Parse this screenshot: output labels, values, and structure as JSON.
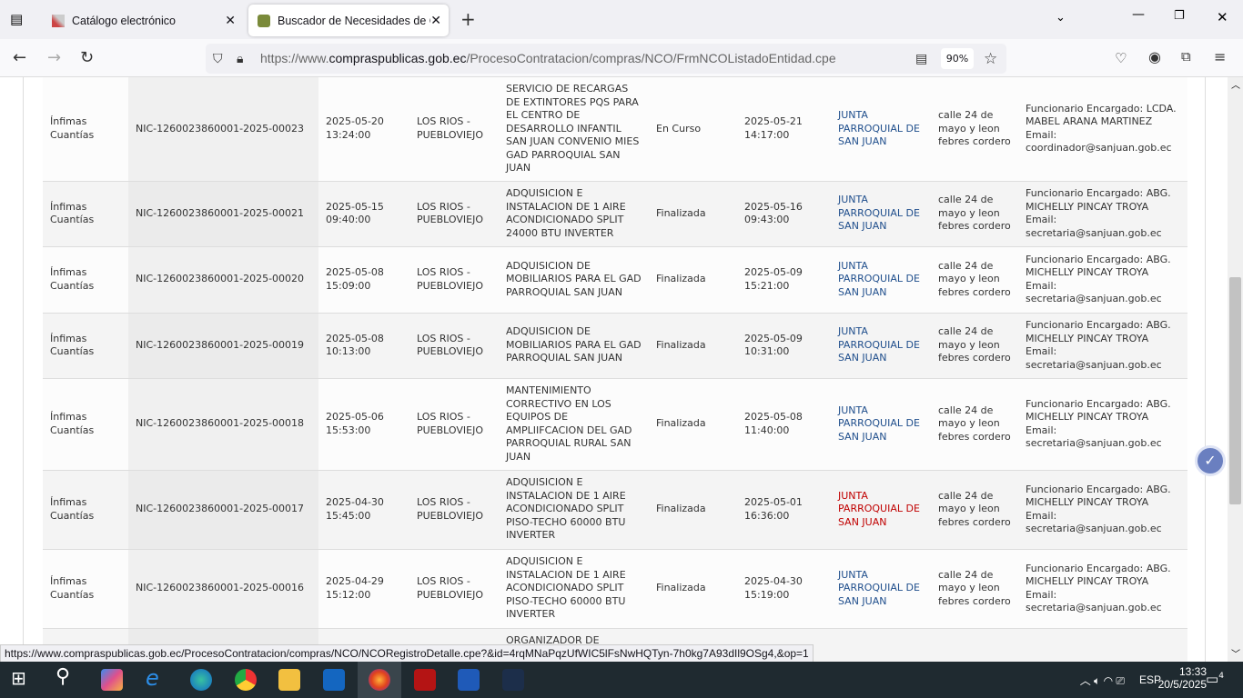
{
  "browser": {
    "tabs": [
      {
        "label": "Catálogo electrónico",
        "active": false
      },
      {
        "label": "Buscador de Necesidades de Co",
        "active": true
      }
    ],
    "url_prefix": "https://www.",
    "url_domain": "compraspublicas.gob.ec",
    "url_path": "/ProcesoContratacion/compras/NCO/FrmNCOListadoEntidad.cpe",
    "zoom": "90%",
    "status_url": "https://www.compraspublicas.gob.ec/ProcesoContratacion/compras/NCO/NCORegistroDetalle.cpe?&id=4rqMNaPqzUfWIC5lFsNwHQTyn-7h0kg7A93dIl9OSg4,&op=1"
  },
  "rows": [
    {
      "tipo": "Ínfimas Cuantías",
      "codigo": "NIC-1260023860001-2025-00023",
      "fecha": "2025-05-20 13:24:00",
      "ubicacion": "LOS RIOS - PUEBLOVIEJO",
      "descripcion": "SERVICIO DE RECARGAS DE EXTINTORES PQS PARA EL CENTRO DE DESARROLLO INFANTIL SAN JUAN CONVENIO MIES GAD PARROQUIAL SAN JUAN",
      "estado": "En Curso",
      "fecha_fin": "2025-05-21 14:17:00",
      "entidad": "JUNTA PARROQUIAL DE SAN JUAN",
      "direccion": "calle 24 de mayo y leon febres cordero",
      "contacto": "Funcionario Encargado: LCDA. MABEL ARANA MARTINEZ Email: coordinador@sanjuan.gob.ec"
    },
    {
      "tipo": "Ínfimas Cuantías",
      "codigo": "NIC-1260023860001-2025-00021",
      "fecha": "2025-05-15 09:40:00",
      "ubicacion": "LOS RIOS - PUEBLOVIEJO",
      "descripcion": "ADQUISICION E INSTALACION DE 1 AIRE ACONDICIONADO SPLIT 24000 BTU INVERTER",
      "estado": "Finalizada",
      "fecha_fin": "2025-05-16 09:43:00",
      "entidad": "JUNTA PARROQUIAL DE SAN JUAN",
      "direccion": "calle 24 de mayo y leon febres cordero",
      "contacto": "Funcionario Encargado: ABG. MICHELLY PINCAY TROYA Email: secretaria@sanjuan.gob.ec"
    },
    {
      "tipo": "Ínfimas Cuantías",
      "codigo": "NIC-1260023860001-2025-00020",
      "fecha": "2025-05-08 15:09:00",
      "ubicacion": "LOS RIOS - PUEBLOVIEJO",
      "descripcion": "ADQUISICION DE MOBILIARIOS PARA EL GAD PARROQUIAL SAN JUAN",
      "estado": "Finalizada",
      "fecha_fin": "2025-05-09 15:21:00",
      "entidad": "JUNTA PARROQUIAL DE SAN JUAN",
      "direccion": "calle 24 de mayo y leon febres cordero",
      "contacto": "Funcionario Encargado: ABG. MICHELLY PINCAY TROYA Email: secretaria@sanjuan.gob.ec"
    },
    {
      "tipo": "Ínfimas Cuantías",
      "codigo": "NIC-1260023860001-2025-00019",
      "fecha": "2025-05-08 10:13:00",
      "ubicacion": "LOS RIOS - PUEBLOVIEJO",
      "descripcion": "ADQUISICION DE MOBILIARIOS PARA EL GAD PARROQUIAL SAN JUAN",
      "estado": "Finalizada",
      "fecha_fin": "2025-05-09 10:31:00",
      "entidad": "JUNTA PARROQUIAL DE SAN JUAN",
      "direccion": "calle 24 de mayo y leon febres cordero",
      "contacto": "Funcionario Encargado: ABG. MICHELLY PINCAY TROYA Email: secretaria@sanjuan.gob.ec"
    },
    {
      "tipo": "Ínfimas Cuantías",
      "codigo": "NIC-1260023860001-2025-00018",
      "fecha": "2025-05-06 15:53:00",
      "ubicacion": "LOS RIOS - PUEBLOVIEJO",
      "descripcion": "MANTENIMIENTO CORRECTIVO EN LOS EQUIPOS DE AMPLIIFCACION DEL GAD PARROQUIAL RURAL SAN JUAN",
      "estado": "Finalizada",
      "fecha_fin": "2025-05-08 11:40:00",
      "entidad": "JUNTA PARROQUIAL DE SAN JUAN",
      "direccion": "calle 24 de mayo y leon febres cordero",
      "contacto": "Funcionario Encargado: ABG. MICHELLY PINCAY TROYA Email: secretaria@sanjuan.gob.ec"
    },
    {
      "tipo": "Ínfimas Cuantías",
      "codigo": "NIC-1260023860001-2025-00017",
      "fecha": "2025-04-30 15:45:00",
      "ubicacion": "LOS RIOS - PUEBLOVIEJO",
      "descripcion": "ADQUISICION E INSTALACION DE 1 AIRE ACONDICIONADO SPLIT PISO-TECHO 60000 BTU INVERTER",
      "estado": "Finalizada",
      "fecha_fin": "2025-05-01 16:36:00",
      "entidad": "JUNTA PARROQUIAL DE SAN JUAN",
      "entity_hover": true,
      "direccion": "calle 24 de mayo y leon febres cordero",
      "contacto": "Funcionario Encargado: ABG. MICHELLY PINCAY TROYA Email: secretaria@sanjuan.gob.ec"
    },
    {
      "tipo": "Ínfimas Cuantías",
      "codigo": "NIC-1260023860001-2025-00016",
      "fecha": "2025-04-29 15:12:00",
      "ubicacion": "LOS RIOS - PUEBLOVIEJO",
      "descripcion": "ADQUISICION E INSTALACION DE 1 AIRE ACONDICIONADO SPLIT PISO-TECHO 60000 BTU INVERTER",
      "estado": "Finalizada",
      "fecha_fin": "2025-04-30 15:19:00",
      "entidad": "JUNTA PARROQUIAL DE SAN JUAN",
      "direccion": "calle 24 de mayo y leon febres cordero",
      "contacto": "Funcionario Encargado: ABG. MICHELLY PINCAY TROYA Email: secretaria@sanjuan.gob.ec"
    },
    {
      "tipo": "",
      "codigo": "",
      "fecha": "",
      "ubicacion": "",
      "descripcion": "ORGANIZADOR DE",
      "estado": "",
      "fecha_fin": "",
      "entidad": "",
      "direccion": "",
      "contacto": ""
    }
  ],
  "colors": {
    "link": "#1f4e8c",
    "link_hover": "#c00000"
  },
  "taskbar": {
    "time": "13:33",
    "date": "20/5/2025",
    "lang": "ESP",
    "notifications": "4"
  }
}
